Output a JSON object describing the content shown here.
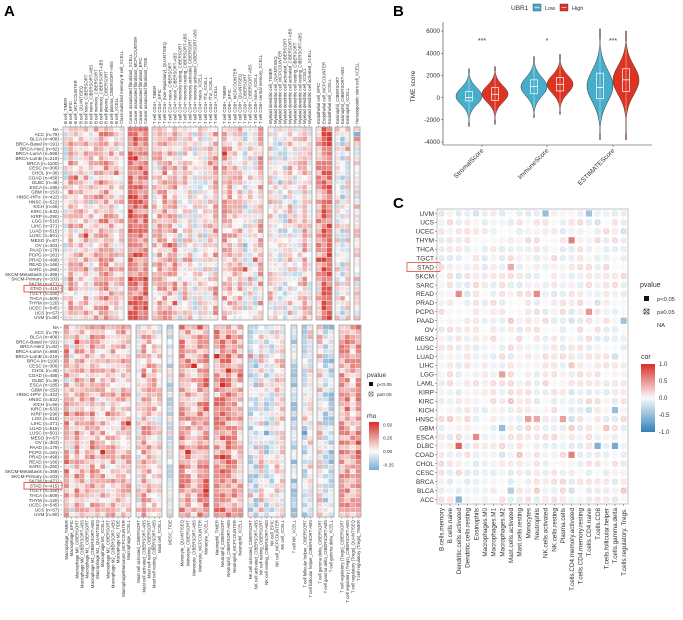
{
  "panels": {
    "a": "A",
    "b": "B",
    "c": "C"
  },
  "colors": {
    "low": "#46aecb",
    "high": "#df3322",
    "neg": "#3582bb",
    "pos": "#d7301f",
    "highlight": "#e8453c"
  },
  "chart_data": [
    {
      "type": "heatmap",
      "panel": "A",
      "rows": [
        "NA",
        "ACC (n=79)",
        "BLCA (n=408)",
        "BRCA-Basal (n=191)",
        "BRCA-Her2 (n=82)",
        "BRCA-LumA (n=568)",
        "BRCA-LumB (n=219)",
        "BRCA (n=1100)",
        "CESC (n=306)",
        "CHOL (n=36)",
        "COAD (n=458)",
        "DLBC (n=48)",
        "ESCA (n=185)",
        "GBM (n=153)",
        "HNSC-HPV- (n=422)",
        "HNSC (n=522)",
        "KICH (n=66)",
        "KIRC (n=533)",
        "KIRP (n=290)",
        "LGG (n=516)",
        "LIHC (n=371)",
        "LUAD (n=515)",
        "LUSC (n=501)",
        "MESO (n=87)",
        "OV (n=303)",
        "PAAD (n=179)",
        "PCPG (n=181)",
        "PRAD (n=498)",
        "READ (n=166)",
        "SARC (n=260)",
        "SKCM-Metastasis (n=368)",
        "SKCM-Primary (n=103)",
        "SKCM (n=471)",
        "STAD (n=415)",
        "TGCT (n=150)",
        "THCA (n=509)",
        "THYM (n=120)",
        "UCEC (n=545)",
        "UCS (n=57)",
        "UVM (n=80)"
      ],
      "highlight_row": "STAD (n=415)",
      "top_groups": [
        {
          "cols": [
            "B cell_TIMER",
            "B cell_EPIC",
            "B cell_MCPCOUNTER",
            "B cell_QUANTISEQ",
            "B cell naive_CIBERSORT",
            "B cell naive_CIBERSORT-ABS",
            "B cell memory_CIBERSORT",
            "B cell memory_CIBERSORT-ABS",
            "B cell plasma_CIBERSORT",
            "B cell plasma_CIBERSORT-ABS",
            "B cell_XCELL",
            "Class-switched memory B cell_XCELL"
          ],
          "bias": 0.12
        },
        {
          "cols": [
            "Cancer associated fibroblast_XCELL",
            "Cancer associated fibroblast_MCPCOUNTER",
            "Cancer associated fibroblast_EPIC",
            "Cancer associated fibroblast_TIDE"
          ],
          "bias": 0.3
        },
        {
          "cols": [
            "T cell CD4+_TIMER",
            "T cell CD4+_EPIC",
            "T cell CD4+ (non-regulatory)_QUANTISEQ",
            "T cell CD4+ naive_CIBERSORT",
            "T cell CD4+ naive_CIBERSORT-ABS",
            "T cell CD4+ memory resting_CIBERSORT",
            "T cell CD4+ memory resting_CIBERSORT-ABS",
            "T cell CD4+ memory activated_CIBERSORT",
            "T cell CD4+ memory activated_CIBERSORT-ABS",
            "T cell CD4+ naive_XCELL",
            "T cell CD4+ Th1_XCELL",
            "T cell CD4+ Th2_XCELL",
            "T cell CD4+_XCELL"
          ],
          "bias": 0.1
        },
        {
          "cols": [
            "T cell CD8+_TIMER",
            "T cell CD8+_EPIC",
            "T cell CD8+_MCPCOUNTER",
            "T cell CD8+_QUANTISEQ",
            "T cell CD8+_CIBERSORT",
            "T cell CD8+_CIBERSORT-ABS",
            "T cell CD8+ naive_XCELL",
            "T cell CD8+ central memory_XCELL"
          ],
          "bias": 0.06
        },
        {
          "cols": [
            "Myeloid dendritic cell_TIMER",
            "Myeloid dendritic cell_QUANTISEQ",
            "Myeloid dendritic cell_MCPCOUNTER",
            "Myeloid dendritic cell activated_CIBERSORT",
            "Myeloid dendritic cell activated_CIBERSORT-ABS",
            "Myeloid dendritic cell resting_CIBERSORT",
            "Myeloid dendritic cell resting_CIBERSORT-ABS",
            "Myeloid dendritic cell_XCELL",
            "Myeloid dendritic cell activated_XCELL"
          ],
          "bias": 0.08
        },
        {
          "cols": [
            "Endothelial cell_EPIC",
            "Endothelial cell_MCPCOUNTER",
            "Endothelial cell_XCELL"
          ],
          "bias": 0.3
        },
        {
          "cols": [
            "Eosinophil_CIBERSORT",
            "Eosinophil_CIBERSORT-ABS",
            "Eosinophil_XCELL"
          ],
          "bias": 0.03
        },
        {
          "cols": [
            "Hematopoietic stem cell_XCELL"
          ],
          "bias": 0.02
        }
      ],
      "bottom_groups": [
        {
          "cols": [
            "Macrophage_TIMER",
            "Macrophage_EPIC",
            "Macrophage M0_CIBERSORT",
            "Macrophage M0_CIBERSORT-ABS",
            "Macrophage M1_CIBERSORT",
            "Macrophage M1_CIBERSORT-ABS",
            "Macrophage M1_QUANTISEQ",
            "Macrophage M1_XCELL",
            "Macrophage M2_CIBERSORT",
            "Macrophage M2_CIBERSORT-ABS",
            "Macrophage M2_TIDE",
            "Macrophage/Monocyte_MCPCOUNTER",
            "Macrophage_XCELL"
          ],
          "bias": 0.12
        },
        {
          "cols": [
            "Mast cell activated_CIBERSORT",
            "Mast cell activated_CIBERSORT-ABS",
            "Mast cell resting_CIBERSORT",
            "Mast cell resting_CIBERSORT-ABS",
            "Mast cell_XCELL"
          ],
          "bias": 0.08
        },
        {
          "cols": [
            "MDSC_TIDE"
          ],
          "bias": 0.0
        },
        {
          "cols": [
            "Monocyte_QUANTISEQ",
            "Monocyte_CIBERSORT",
            "Monocyte_CIBERSORT-ABS",
            "Monocyte_MCPCOUNTER",
            "Monocyte_XCELL"
          ],
          "bias": 0.18
        },
        {
          "cols": [
            "Neutrophil_TIMER",
            "Neutrophil_CIBERSORT",
            "Neutrophil_CIBERSORT-ABS",
            "Neutrophil_MCPCOUNTER",
            "Neutrophil_XCELL"
          ],
          "bias": 0.22
        },
        {
          "cols": [
            "NK cell activated_CIBERSORT",
            "NK cell activated_CIBERSORT-ABS",
            "NK cell resting_CIBERSORT",
            "NK cell resting_CIBERSORT-ABS",
            "NK cell_EPIC",
            "NK cell_MCPCOUNTER",
            "NK cell_XCELL"
          ],
          "bias": 0.0
        },
        {
          "cols": [
            "T cell NK_XCELL"
          ],
          "bias": -0.15
        },
        {
          "cols": [
            "T cell follicular helper_CIBERSORT",
            "T cell follicular helper_CIBERSORT-ABS"
          ],
          "bias": 0.02
        },
        {
          "cols": [
            "T cell gamma delta_CIBERSORT",
            "T cell gamma delta_CIBERSORT-ABS",
            "T cell gamma delta_XCELL"
          ],
          "bias": -0.02
        },
        {
          "cols": [
            "T cell regulatory (Tregs)_CIBERSORT",
            "T cell regulatory (Tregs)_CIBERSORT-ABS",
            "T cell regulatory (Tregs)_QUANTISEQ",
            "T cell regulatory (Tregs)_TIMER"
          ],
          "bias": 0.15
        }
      ],
      "legend": {
        "pvalue_title": "pvalue",
        "p_sig": "p<0.05",
        "p_ns": "p≥0.05",
        "scale_title": "rho",
        "scale_ticks": [
          "0.50",
          "0.25",
          "0.00",
          "-0.25"
        ],
        "scale_range": [
          -0.35,
          0.55
        ]
      }
    },
    {
      "type": "violin",
      "panel": "B",
      "legend_title": "UBR1",
      "groups": [
        "Low",
        "High"
      ],
      "ylabel": "TME score",
      "ylim": [
        -4000,
        6000
      ],
      "yticks": [
        "6000",
        "4000",
        "2000",
        "0",
        "-2000",
        "-4000"
      ],
      "categories": [
        "StromalScore",
        "ImmuneScore",
        "ESTIMATEScore"
      ],
      "significance": [
        "***",
        "*",
        "***"
      ],
      "series": [
        {
          "name": "Low",
          "stats": [
            {
              "min": -2600,
              "q1": -300,
              "median": 0,
              "q3": 550,
              "max": 2600,
              "sd": 750
            },
            {
              "min": -1800,
              "q1": 350,
              "median": 1000,
              "q3": 1600,
              "max": 3700,
              "sd": 850
            },
            {
              "min": -3800,
              "q1": -100,
              "median": 900,
              "q3": 2200,
              "max": 6200,
              "sd": 1400
            }
          ]
        },
        {
          "name": "High",
          "stats": [
            {
              "min": -2400,
              "q1": -250,
              "median": 300,
              "q3": 900,
              "max": 2800,
              "sd": 750
            },
            {
              "min": -1500,
              "q1": 600,
              "median": 1200,
              "q3": 1800,
              "max": 3900,
              "sd": 800
            },
            {
              "min": -3800,
              "q1": 550,
              "median": 1600,
              "q3": 2600,
              "max": 6000,
              "sd": 1300
            }
          ]
        }
      ]
    },
    {
      "type": "heatmap",
      "panel": "C",
      "rows": [
        "UVM",
        "UCS",
        "UCEC",
        "THYM",
        "THCA",
        "TGCT",
        "STAD",
        "SKCM",
        "SARC",
        "READ",
        "PRAD",
        "PCPG",
        "PAAD",
        "OV",
        "MESO",
        "LUSC",
        "LUAD",
        "LIHC",
        "LGG",
        "LAML",
        "KIRP",
        "KIRC",
        "KICH",
        "HNSC",
        "GBM",
        "ESCA",
        "DLBC",
        "COAD",
        "CHOL",
        "CESC",
        "BRCA",
        "BLCA",
        "ACC"
      ],
      "highlight_row": "STAD",
      "columns": [
        "B.cells.memory",
        "B.cells.naive",
        "Dendritic.cells.activated",
        "Dendritic.cells.resting",
        "Eosinophils",
        "Macrophages.M0",
        "Macrophages.M1",
        "Macrophages.M2",
        "Mast.cells.activated",
        "Mast.cells.resting",
        "Monocytes",
        "Neutrophils",
        "NK.cells.activated",
        "NK.cells.resting",
        "Plasma.cells",
        "T.cells.CD4.memory.activated",
        "T.cells.CD4.memory.resting",
        "T.cells.CD4.naive",
        "T.cells.CD8",
        "T.cells.follicular.helper",
        "T.cells.gamma.delta",
        "T.cells.regulatory..Tregs."
      ],
      "notable_cells": [
        {
          "row": "DLBC",
          "col": "Dendritic.cells.activated",
          "cor": 0.75,
          "sig": true
        },
        {
          "row": "DLBC",
          "col": "T.cells.CD8",
          "cor": -0.6,
          "sig": true
        },
        {
          "row": "DLBC",
          "col": "T.cells.gamma.delta",
          "cor": -0.65,
          "sig": true
        },
        {
          "row": "ACC",
          "col": "Dendritic.cells.activated",
          "cor": -0.55,
          "sig": true
        },
        {
          "row": "READ",
          "col": "Dendritic.cells.activated",
          "cor": 0.55,
          "sig": true
        },
        {
          "row": "READ",
          "col": "Neutrophils",
          "cor": 0.55,
          "sig": true
        },
        {
          "row": "THYM",
          "col": "T.cells.CD4.memory.activated",
          "cor": 0.6,
          "sig": true
        },
        {
          "row": "UVM",
          "col": "NK.cells.activated",
          "cor": -0.5,
          "sig": true
        },
        {
          "row": "UVM",
          "col": "T.cells.CD4.naive",
          "cor": -0.45,
          "sig": true
        },
        {
          "row": "PCPG",
          "col": "T.cells.CD4.naive",
          "cor": 0.5,
          "sig": true
        },
        {
          "row": "STAD",
          "col": "Mast.cells.activated",
          "cor": 0.4,
          "sig": true
        },
        {
          "row": "LGG",
          "col": "Macrophages.M2",
          "cor": 0.45,
          "sig": true
        },
        {
          "row": "COAD",
          "col": "T.cells.CD4.memory.activated",
          "cor": 0.6,
          "sig": true
        },
        {
          "row": "ESCA",
          "col": "Eosinophils",
          "cor": 0.55,
          "sig": true
        },
        {
          "row": "GBM",
          "col": "Macrophages.M2",
          "cor": -0.5,
          "sig": true
        },
        {
          "row": "HNSC",
          "col": "Monocytes",
          "cor": 0.45,
          "sig": true
        },
        {
          "row": "HNSC",
          "col": "Neutrophils",
          "cor": 0.4,
          "sig": true
        },
        {
          "row": "HNSC",
          "col": "Plasma.cells",
          "cor": 0.45,
          "sig": true
        },
        {
          "row": "KICH",
          "col": "T.cells.gamma.delta",
          "cor": -0.5,
          "sig": true
        },
        {
          "row": "BLCA",
          "col": "Mast.cells.activated",
          "cor": -0.35,
          "sig": true
        },
        {
          "row": "PAAD",
          "col": "T.cells.regulatory..Tregs.",
          "cor": -0.45,
          "sig": true
        }
      ],
      "legend": {
        "pvalue_title": "pvalue",
        "p_sig": "p<0.05",
        "p_ns": "p≥0.05",
        "na": "NA",
        "scale_title": "cor",
        "scale_ticks": [
          "1.0",
          "0.5",
          "0.0",
          "-0.5",
          "-1.0"
        ],
        "scale_range": [
          -1,
          1
        ]
      }
    }
  ]
}
